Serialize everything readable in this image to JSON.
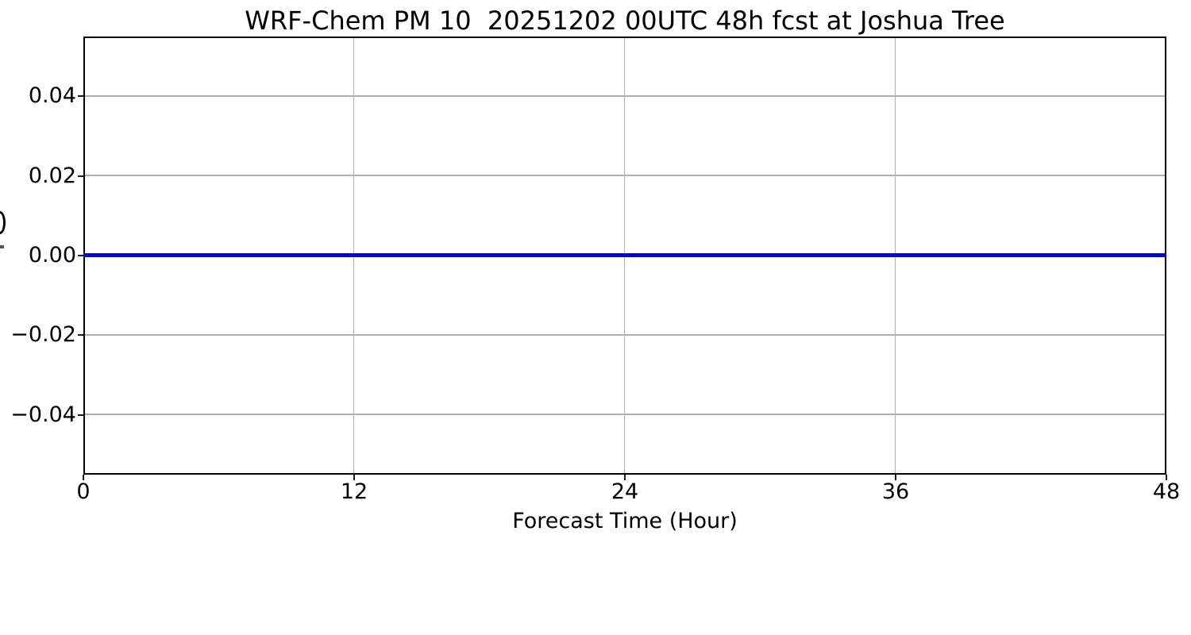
{
  "chart_data": {
    "type": "line",
    "title": "WRF-Chem PM 10  20251202 00UTC 48h fcst at Joshua Tree",
    "xlabel": "Forecast Time (Hour)",
    "ylabel_clipped_fragment_visible": true,
    "xlim": [
      0,
      48
    ],
    "ylim": [
      -0.055,
      0.055
    ],
    "xticks": [
      0,
      12,
      24,
      36,
      48
    ],
    "xtick_labels": [
      "0",
      "12",
      "24",
      "36",
      "48"
    ],
    "yticks": [
      0.04,
      0.02,
      0,
      -0.02,
      -0.04
    ],
    "ytick_labels": [
      "0.04",
      "0.02",
      "0.00",
      "−0.02",
      "−0.04"
    ],
    "grid": true,
    "legend": "none",
    "colors": {
      "line": "#0000ff",
      "grid": "#b0b0b0",
      "spine": "#000000",
      "text": "#000000",
      "background": "#ffffff"
    },
    "series": [
      {
        "x": [
          0,
          48
        ],
        "y": [
          0,
          0
        ],
        "color": "#0000ff",
        "note": "flat line at value 0.00 spanning the full 0-48 h forecast period"
      }
    ]
  }
}
